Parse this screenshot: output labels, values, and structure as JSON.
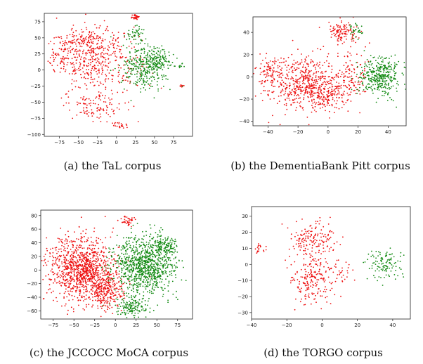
{
  "colors": {
    "class_a": "#ee1111",
    "class_b": "#138a13"
  },
  "chart_data": [
    {
      "type": "scatter",
      "caption": "(a) the TaL corpus",
      "xlim": [
        -95,
        100
      ],
      "ylim": [
        -103,
        88
      ],
      "xticks": [
        -75,
        -50,
        -25,
        0,
        25,
        50,
        75
      ],
      "yticks": [
        -100,
        -75,
        -50,
        -25,
        0,
        25,
        50,
        75
      ],
      "grid": false,
      "series": [
        {
          "color": "#ee1111",
          "clusters": [
            {
              "x": -25,
              "y": 15,
              "sx": 35,
              "sy": 30,
              "n": 420
            },
            {
              "x": -45,
              "y": 45,
              "sx": 22,
              "sy": 15,
              "n": 130
            },
            {
              "x": -30,
              "y": -55,
              "sx": 25,
              "sy": 15,
              "n": 110
            },
            {
              "x": 25,
              "y": 82,
              "sx": 5,
              "sy": 3,
              "n": 28
            },
            {
              "x": 5,
              "y": -85,
              "sx": 6,
              "sy": 4,
              "n": 22
            },
            {
              "x": -75,
              "y": 20,
              "sx": 10,
              "sy": 12,
              "n": 40
            },
            {
              "x": 85,
              "y": -25,
              "sx": 3,
              "sy": 2,
              "n": 8
            }
          ]
        },
        {
          "color": "#138a13",
          "clusters": [
            {
              "x": 38,
              "y": 5,
              "sx": 18,
              "sy": 22,
              "n": 330
            },
            {
              "x": 60,
              "y": 15,
              "sx": 10,
              "sy": 12,
              "n": 70
            },
            {
              "x": 25,
              "y": 55,
              "sx": 8,
              "sy": 8,
              "n": 45
            },
            {
              "x": 85,
              "y": 5,
              "sx": 3,
              "sy": 3,
              "n": 8
            }
          ]
        }
      ]
    },
    {
      "type": "scatter",
      "caption": "(b) the DementiaBank Pitt corpus",
      "xlim": [
        -50,
        52
      ],
      "ylim": [
        -44,
        54
      ],
      "xticks": [
        -40,
        -20,
        0,
        20,
        40
      ],
      "yticks": [
        -40,
        -20,
        0,
        20,
        40
      ],
      "grid": false,
      "series": [
        {
          "color": "#ee1111",
          "clusters": [
            {
              "x": -18,
              "y": -5,
              "sx": 15,
              "sy": 15,
              "n": 520
            },
            {
              "x": -40,
              "y": 5,
              "sx": 5,
              "sy": 8,
              "n": 70
            },
            {
              "x": 0,
              "y": -15,
              "sx": 10,
              "sy": 10,
              "n": 160
            },
            {
              "x": 10,
              "y": 40,
              "sx": 6,
              "sy": 6,
              "n": 120
            },
            {
              "x": 15,
              "y": 0,
              "sx": 8,
              "sy": 15,
              "n": 110
            }
          ]
        },
        {
          "color": "#138a13",
          "clusters": [
            {
              "x": 35,
              "y": 0,
              "sx": 9,
              "sy": 11,
              "n": 360
            },
            {
              "x": 18,
              "y": 42,
              "sx": 3,
              "sy": 4,
              "n": 30
            }
          ]
        }
      ]
    },
    {
      "type": "scatter",
      "caption": "(c) the JCCOCC MoCA corpus",
      "xlim": [
        -90,
        93
      ],
      "ylim": [
        -72,
        88
      ],
      "xticks": [
        -75,
        -50,
        -25,
        0,
        25,
        50,
        75
      ],
      "yticks": [
        -60,
        -40,
        -20,
        0,
        20,
        40,
        60,
        80
      ],
      "grid": false,
      "series": [
        {
          "color": "#ee1111",
          "clusters": [
            {
              "x": -40,
              "y": 0,
              "sx": 25,
              "sy": 30,
              "n": 1050
            },
            {
              "x": -10,
              "y": -30,
              "sx": 12,
              "sy": 18,
              "n": 220
            },
            {
              "x": 15,
              "y": 72,
              "sx": 5,
              "sy": 5,
              "n": 40
            }
          ]
        },
        {
          "color": "#138a13",
          "clusters": [
            {
              "x": 35,
              "y": 5,
              "sx": 22,
              "sy": 28,
              "n": 900
            },
            {
              "x": 20,
              "y": -55,
              "sx": 12,
              "sy": 8,
              "n": 130
            },
            {
              "x": 60,
              "y": 35,
              "sx": 10,
              "sy": 10,
              "n": 130
            }
          ]
        }
      ]
    },
    {
      "type": "scatter",
      "caption": "(d) the TORGO corpus",
      "xlim": [
        -40,
        50
      ],
      "ylim": [
        -34,
        36
      ],
      "xticks": [
        -40,
        -20,
        0,
        20,
        40
      ],
      "yticks": [
        -30,
        -20,
        -10,
        0,
        10,
        20,
        30
      ],
      "grid": false,
      "series": [
        {
          "color": "#ee1111",
          "clusters": [
            {
              "x": -5,
              "y": -10,
              "sx": 8,
              "sy": 10,
              "n": 210
            },
            {
              "x": -5,
              "y": 15,
              "sx": 9,
              "sy": 8,
              "n": 160
            },
            {
              "x": -35,
              "y": 10,
              "sx": 2,
              "sy": 2,
              "n": 18
            },
            {
              "x": 12,
              "y": -5,
              "sx": 4,
              "sy": 4,
              "n": 18
            }
          ]
        },
        {
          "color": "#138a13",
          "clusters": [
            {
              "x": 35,
              "y": 0,
              "sx": 6,
              "sy": 6,
              "n": 110
            }
          ]
        }
      ]
    }
  ]
}
